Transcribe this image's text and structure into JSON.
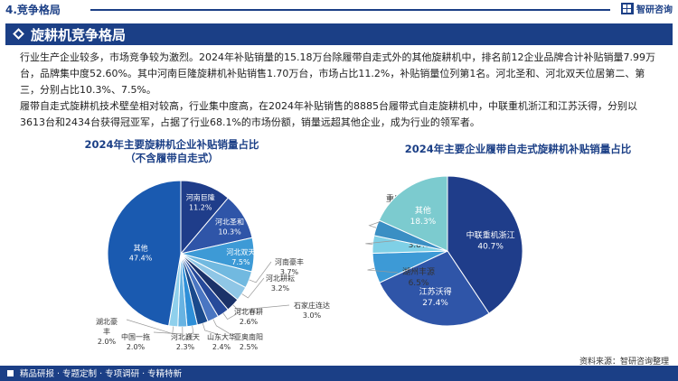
{
  "header": {
    "section_label": "4.竞争格局",
    "brand_name": "智研咨询"
  },
  "title": "旋耕机竞争格局",
  "paragraphs": {
    "p1": "行业生产企业较多，市场竞争较为激烈。2024年补贴销量的15.18万台除履带自走式外的其他旋耕机中，排名前12企业品牌合计补贴销量7.99万台，品牌集中度52.60%。其中河南巨隆旋耕机补贴销售1.70万台，市场占比11.2%，补贴销量位列第1名。河北圣和、河北双天位居第二、第三，分别占比10.3%、7.5%。",
    "p2": "履带自走式旋耕机技术壁垒相对较高，行业集中度高，在2024年补贴销售的8885台履带式自走旋耕机中，中联重机浙江和江苏沃得，分别以3613台和2434台获得冠亚军，占据了行业68.1%的市场份额，销量远超其他企业，成为行业的领军者。"
  },
  "footer": {
    "text": "精品研报 · 专题定制 · 专项调研 · 专精特新",
    "source": "资料来源：智研咨询整理"
  },
  "chart_data": [
    {
      "type": "pie",
      "title": "2024年主要旋耕机企业补贴销量占比",
      "subtitle": "（不含履带自走式）",
      "series": [
        {
          "name": "河南巨隆",
          "value": 11.2,
          "label": "11.2%",
          "color": "#1f3d8a"
        },
        {
          "name": "河北圣和",
          "value": 10.3,
          "label": "10.3%",
          "color": "#2f55a8"
        },
        {
          "name": "河北双天",
          "value": 7.5,
          "label": "7.5%",
          "color": "#3d9ad6"
        },
        {
          "name": "河南豪丰",
          "value": 3.7,
          "label": "3.7%",
          "color": "#71b9e0"
        },
        {
          "name": "河北耕耘",
          "value": 3.2,
          "label": "3.2%",
          "color": "#8fc6e6"
        },
        {
          "name": "石家庄连达",
          "value": 3.0,
          "label": "3.0%",
          "color": "#1b3269"
        },
        {
          "name": "河北春耕",
          "value": 2.6,
          "label": "2.6%",
          "color": "#274a9a"
        },
        {
          "name": "亚奥南阳",
          "value": 2.5,
          "label": "2.5%",
          "color": "#4a76c2"
        },
        {
          "name": "山东大华",
          "value": 2.4,
          "label": "2.4%",
          "color": "#1a4a8c"
        },
        {
          "name": "河北巍天",
          "value": 2.3,
          "label": "2.3%",
          "color": "#2e8fd8"
        },
        {
          "name": "中国一拖",
          "value": 2.0,
          "label": "2.0%",
          "color": "#67b3e2"
        },
        {
          "name": "湖北豪丰",
          "value": 2.0,
          "label": "2.0%",
          "color": "#8fd0ec"
        },
        {
          "name": "其他",
          "value": 47.4,
          "label": "47.4%",
          "color": "#1a5ab0"
        }
      ]
    },
    {
      "type": "pie",
      "title": "2024年主要企业履带自走式旋耕机补贴销量占比",
      "series": [
        {
          "name": "中联重机浙江",
          "value": 40.7,
          "label": "40.7%",
          "color": "#1f3d8a"
        },
        {
          "name": "江苏沃得",
          "value": 27.4,
          "label": "27.4%",
          "color": "#2f55a8"
        },
        {
          "name": "湖州丰源",
          "value": 6.5,
          "label": "6.5%",
          "color": "#3d9ad6"
        },
        {
          "name": "星光农机",
          "value": 3.8,
          "label": "3.8%",
          "color": "#7fd0e6"
        },
        {
          "name": "重庆鑫源",
          "value": 3.4,
          "label": "3.4%",
          "color": "#3a8fc4"
        },
        {
          "name": "其他",
          "value": 18.3,
          "label": "18.3%",
          "color": "#7ccbcf"
        }
      ]
    }
  ]
}
